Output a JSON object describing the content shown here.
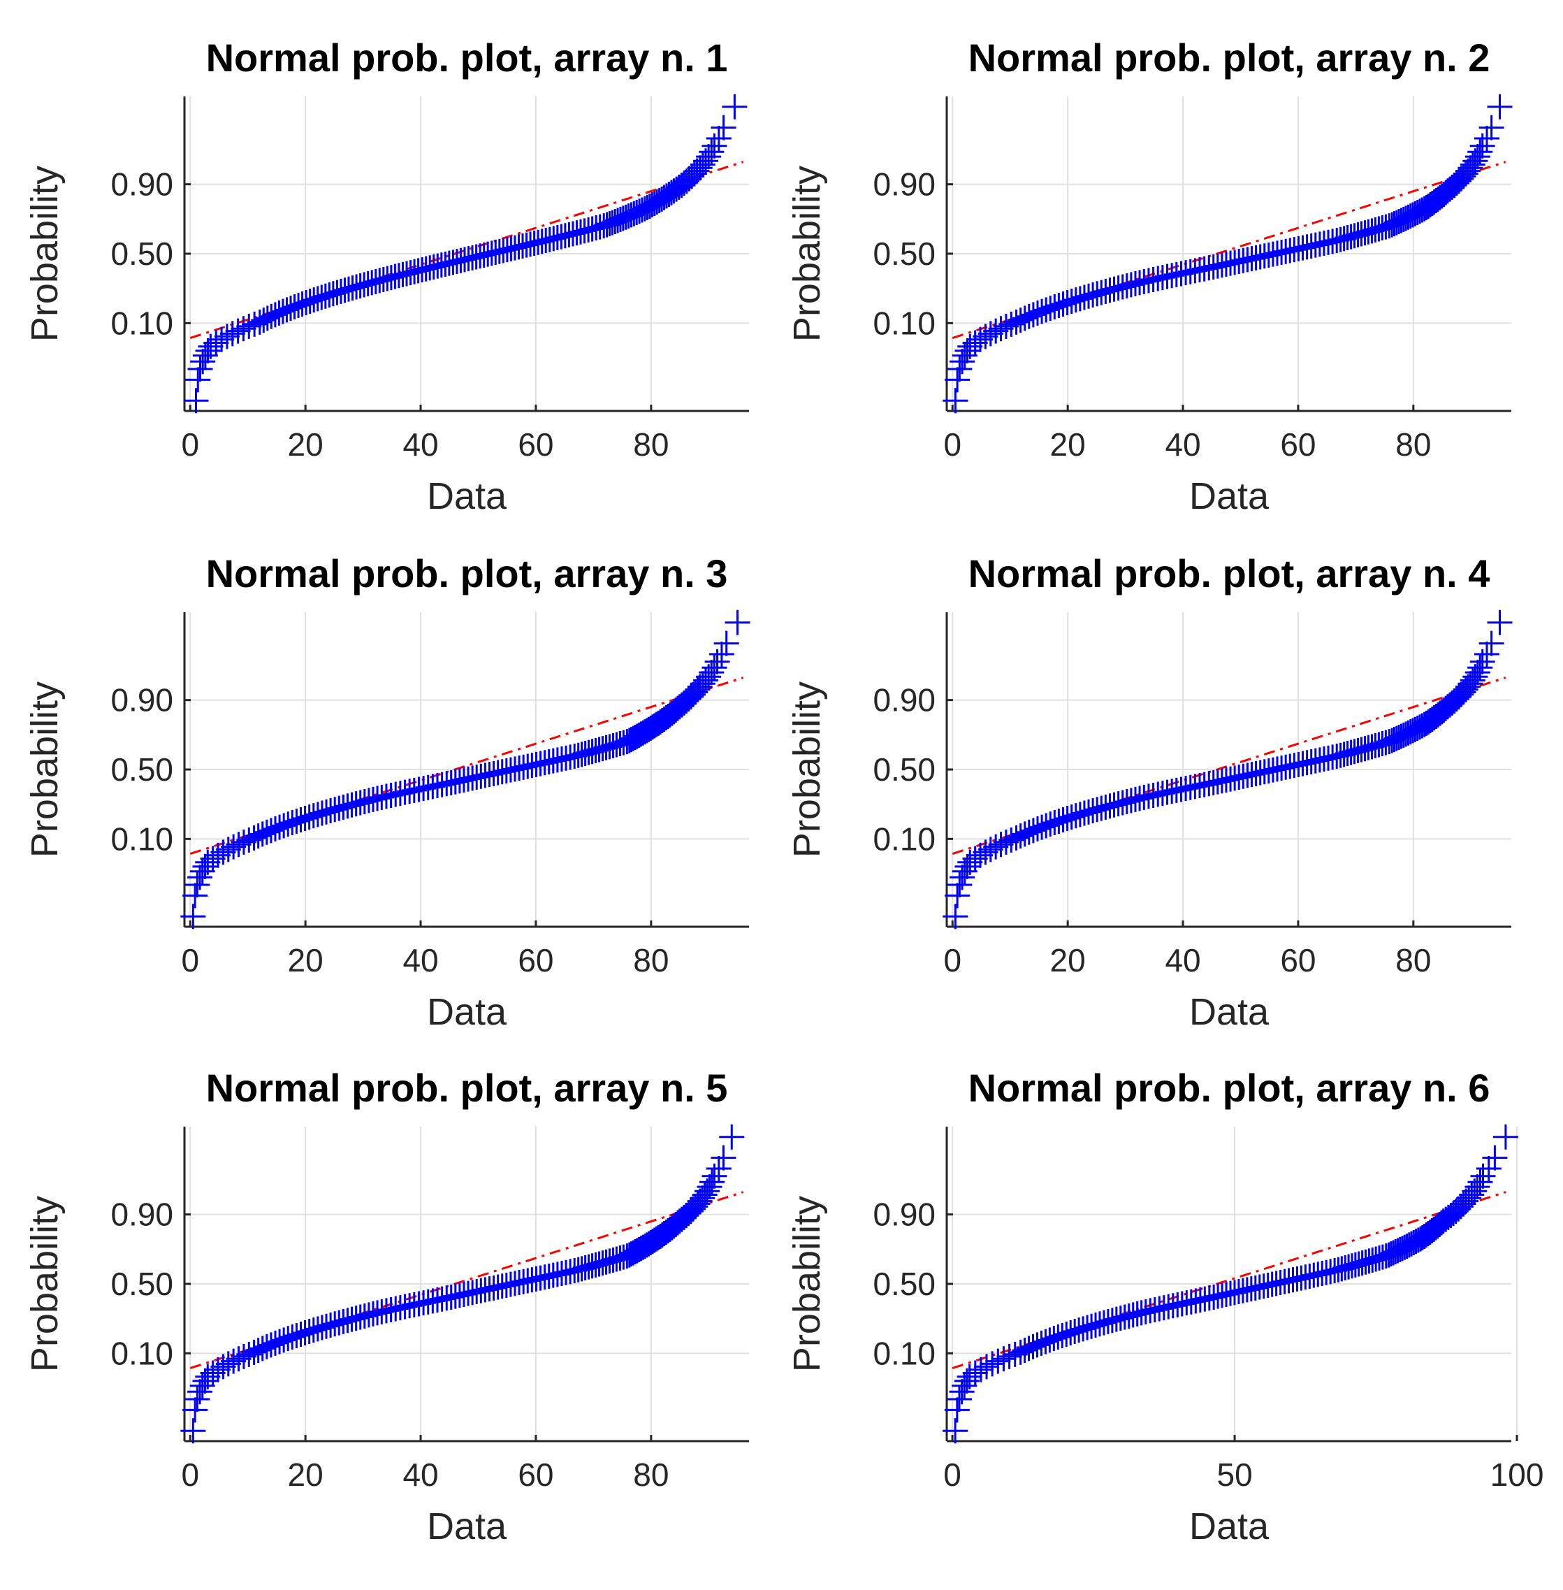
{
  "colors": {
    "data_marker": "#0000ff",
    "reference_line": "#ff0000",
    "axis": "#262626",
    "grid": "#e0e0e0",
    "background": "#ffffff"
  },
  "chart_data": [
    {
      "type": "scatter",
      "title": "Normal prob. plot, array n. 1",
      "xlabel": "Data",
      "ylabel": "Probability",
      "xlim": [
        -1,
        97
      ],
      "xticks": [
        0,
        20,
        40,
        60,
        80
      ],
      "yticks": [
        0.1,
        0.5,
        0.9
      ],
      "ytick_labels": [
        "0.10",
        "0.50",
        "0.90"
      ],
      "n_points": 150,
      "data_min": 1,
      "data_max": 94.5,
      "reference_line": {
        "style": "dash-dot",
        "x_start": 0,
        "p_start": 0.06,
        "x_end": 96,
        "p_end": 0.955
      },
      "quantile_curve": [
        {
          "p": 0.0,
          "x": 1
        },
        {
          "p": 0.01,
          "x": 1.5
        },
        {
          "p": 0.04,
          "x": 3.5
        },
        {
          "p": 0.1,
          "x": 12
        },
        {
          "p": 0.2,
          "x": 22
        },
        {
          "p": 0.3,
          "x": 32
        },
        {
          "p": 0.4,
          "x": 42
        },
        {
          "p": 0.5,
          "x": 52
        },
        {
          "p": 0.6,
          "x": 62
        },
        {
          "p": 0.7,
          "x": 72
        },
        {
          "p": 0.8,
          "x": 79
        },
        {
          "p": 0.88,
          "x": 84
        },
        {
          "p": 0.94,
          "x": 88
        },
        {
          "p": 0.98,
          "x": 91
        },
        {
          "p": 0.993,
          "x": 92.5
        },
        {
          "p": 1.0,
          "x": 94.5
        }
      ]
    },
    {
      "type": "scatter",
      "title": "Normal prob. plot, array n. 2",
      "xlabel": "Data",
      "ylabel": "Probability",
      "xlim": [
        -1,
        97
      ],
      "xticks": [
        0,
        20,
        40,
        60,
        80
      ],
      "yticks": [
        0.1,
        0.5,
        0.9
      ],
      "ytick_labels": [
        "0.10",
        "0.50",
        "0.90"
      ],
      "n_points": 150,
      "data_min": 0.5,
      "data_max": 95,
      "reference_line": {
        "style": "dash-dot",
        "x_start": 0,
        "p_start": 0.06,
        "x_end": 96,
        "p_end": 0.955
      },
      "quantile_curve": [
        {
          "p": 0.0,
          "x": 0.5
        },
        {
          "p": 0.01,
          "x": 1
        },
        {
          "p": 0.04,
          "x": 3
        },
        {
          "p": 0.1,
          "x": 11
        },
        {
          "p": 0.2,
          "x": 22
        },
        {
          "p": 0.3,
          "x": 33
        },
        {
          "p": 0.4,
          "x": 45
        },
        {
          "p": 0.5,
          "x": 56
        },
        {
          "p": 0.6,
          "x": 67
        },
        {
          "p": 0.7,
          "x": 76
        },
        {
          "p": 0.8,
          "x": 82
        },
        {
          "p": 0.88,
          "x": 86
        },
        {
          "p": 0.94,
          "x": 89.5
        },
        {
          "p": 0.98,
          "x": 92
        },
        {
          "p": 0.993,
          "x": 93.5
        },
        {
          "p": 1.0,
          "x": 95
        }
      ]
    },
    {
      "type": "scatter",
      "title": "Normal prob. plot, array n. 3",
      "xlabel": "Data",
      "ylabel": "Probability",
      "xlim": [
        -1,
        97
      ],
      "xticks": [
        0,
        20,
        40,
        60,
        80
      ],
      "yticks": [
        0.1,
        0.5,
        0.9
      ],
      "ytick_labels": [
        "0.10",
        "0.50",
        "0.90"
      ],
      "n_points": 150,
      "data_min": 0.5,
      "data_max": 95,
      "reference_line": {
        "style": "dash-dot",
        "x_start": 0,
        "p_start": 0.06,
        "x_end": 96,
        "p_end": 0.955
      },
      "quantile_curve": [
        {
          "p": 0.0,
          "x": 0.5
        },
        {
          "p": 0.01,
          "x": 1
        },
        {
          "p": 0.04,
          "x": 3
        },
        {
          "p": 0.1,
          "x": 11
        },
        {
          "p": 0.2,
          "x": 22
        },
        {
          "p": 0.3,
          "x": 33
        },
        {
          "p": 0.4,
          "x": 45
        },
        {
          "p": 0.5,
          "x": 56
        },
        {
          "p": 0.6,
          "x": 67
        },
        {
          "p": 0.7,
          "x": 76
        },
        {
          "p": 0.8,
          "x": 81
        },
        {
          "p": 0.88,
          "x": 85
        },
        {
          "p": 0.94,
          "x": 88.5
        },
        {
          "p": 0.98,
          "x": 91.5
        },
        {
          "p": 0.993,
          "x": 93
        },
        {
          "p": 1.0,
          "x": 95
        }
      ]
    },
    {
      "type": "scatter",
      "title": "Normal prob. plot, array n. 4",
      "xlabel": "Data",
      "ylabel": "Probability",
      "xlim": [
        -1,
        97
      ],
      "xticks": [
        0,
        20,
        40,
        60,
        80
      ],
      "yticks": [
        0.1,
        0.5,
        0.9
      ],
      "ytick_labels": [
        "0.10",
        "0.50",
        "0.90"
      ],
      "n_points": 150,
      "data_min": 0.5,
      "data_max": 95,
      "reference_line": {
        "style": "dash-dot",
        "x_start": 0,
        "p_start": 0.06,
        "x_end": 96,
        "p_end": 0.955
      },
      "quantile_curve": [
        {
          "p": 0.0,
          "x": 0.5
        },
        {
          "p": 0.01,
          "x": 1
        },
        {
          "p": 0.04,
          "x": 3
        },
        {
          "p": 0.1,
          "x": 11
        },
        {
          "p": 0.2,
          "x": 22
        },
        {
          "p": 0.3,
          "x": 33
        },
        {
          "p": 0.4,
          "x": 45
        },
        {
          "p": 0.5,
          "x": 56
        },
        {
          "p": 0.6,
          "x": 67
        },
        {
          "p": 0.7,
          "x": 76
        },
        {
          "p": 0.8,
          "x": 82
        },
        {
          "p": 0.88,
          "x": 86
        },
        {
          "p": 0.94,
          "x": 89.5
        },
        {
          "p": 0.98,
          "x": 92
        },
        {
          "p": 0.993,
          "x": 93.5
        },
        {
          "p": 1.0,
          "x": 95
        }
      ]
    },
    {
      "type": "scatter",
      "title": "Normal prob. plot, array n. 5",
      "xlabel": "Data",
      "ylabel": "Probability",
      "xlim": [
        -1,
        97
      ],
      "xticks": [
        0,
        20,
        40,
        60,
        80
      ],
      "yticks": [
        0.1,
        0.5,
        0.9
      ],
      "ytick_labels": [
        "0.10",
        "0.50",
        "0.90"
      ],
      "n_points": 150,
      "data_min": 0.5,
      "data_max": 94,
      "reference_line": {
        "style": "dash-dot",
        "x_start": 0,
        "p_start": 0.06,
        "x_end": 96,
        "p_end": 0.955
      },
      "quantile_curve": [
        {
          "p": 0.0,
          "x": 0.5
        },
        {
          "p": 0.01,
          "x": 1
        },
        {
          "p": 0.04,
          "x": 3
        },
        {
          "p": 0.1,
          "x": 11
        },
        {
          "p": 0.2,
          "x": 22
        },
        {
          "p": 0.3,
          "x": 33
        },
        {
          "p": 0.4,
          "x": 45
        },
        {
          "p": 0.5,
          "x": 56
        },
        {
          "p": 0.6,
          "x": 67
        },
        {
          "p": 0.7,
          "x": 76
        },
        {
          "p": 0.8,
          "x": 81
        },
        {
          "p": 0.88,
          "x": 85
        },
        {
          "p": 0.94,
          "x": 88.5
        },
        {
          "p": 0.98,
          "x": 91
        },
        {
          "p": 0.993,
          "x": 92.5
        },
        {
          "p": 1.0,
          "x": 94
        }
      ]
    },
    {
      "type": "scatter",
      "title": "Normal prob. plot, array n. 6",
      "xlabel": "Data",
      "ylabel": "Probability",
      "xlim": [
        -1,
        99
      ],
      "xticks": [
        0,
        50,
        100
      ],
      "yticks": [
        0.1,
        0.5,
        0.9
      ],
      "ytick_labels": [
        "0.10",
        "0.50",
        "0.90"
      ],
      "n_points": 150,
      "data_min": 0.5,
      "data_max": 98,
      "reference_line": {
        "style": "dash-dot",
        "x_start": 0,
        "p_start": 0.06,
        "x_end": 98,
        "p_end": 0.955
      },
      "quantile_curve": [
        {
          "p": 0.0,
          "x": 0.5
        },
        {
          "p": 0.01,
          "x": 1
        },
        {
          "p": 0.04,
          "x": 3
        },
        {
          "p": 0.1,
          "x": 12
        },
        {
          "p": 0.2,
          "x": 23
        },
        {
          "p": 0.3,
          "x": 34
        },
        {
          "p": 0.4,
          "x": 46
        },
        {
          "p": 0.5,
          "x": 57
        },
        {
          "p": 0.6,
          "x": 68
        },
        {
          "p": 0.7,
          "x": 77
        },
        {
          "p": 0.8,
          "x": 83
        },
        {
          "p": 0.88,
          "x": 87
        },
        {
          "p": 0.94,
          "x": 91
        },
        {
          "p": 0.98,
          "x": 94
        },
        {
          "p": 0.993,
          "x": 96
        },
        {
          "p": 1.0,
          "x": 98
        }
      ]
    }
  ]
}
